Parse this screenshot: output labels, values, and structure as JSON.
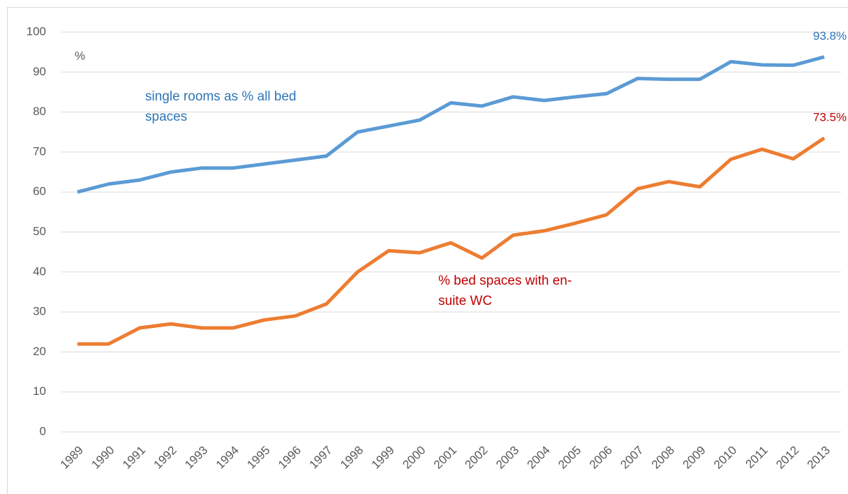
{
  "chart_data": {
    "type": "line",
    "y_label": "%",
    "categories": [
      "1989",
      "1990",
      "1991",
      "1992",
      "1993",
      "1994",
      "1995",
      "1996",
      "1997",
      "1998",
      "1999",
      "2000",
      "2001",
      "2002",
      "2003",
      "2004",
      "2005",
      "2006",
      "2007",
      "2008",
      "2009",
      "2010",
      "2011",
      "2012",
      "2013"
    ],
    "series": [
      {
        "name": "single rooms as % all bed spaces",
        "color": "#5b9bd5",
        "label_color": "#2e75b6",
        "values": [
          60,
          62,
          63,
          65,
          66,
          66,
          67,
          68,
          69,
          75,
          76.5,
          78,
          82.3,
          81.5,
          83.8,
          82.9,
          83.8,
          84.6,
          88.4,
          88.2,
          88.2,
          92.6,
          91.8,
          91.7,
          93.8
        ],
        "value_labels": [
          null,
          null,
          null,
          null,
          null,
          null,
          null,
          null,
          null,
          null,
          null,
          null,
          null,
          null,
          null,
          null,
          null,
          null,
          null,
          null,
          null,
          null,
          null,
          null,
          "93.8%"
        ]
      },
      {
        "name": "% bed spaces with en-suite WC",
        "color": "#ed7d31",
        "label_color": "#c00000",
        "values": [
          22,
          22,
          26,
          27,
          26,
          26,
          28,
          29,
          32,
          40,
          45.3,
          44.8,
          47.3,
          43.5,
          49.2,
          50.3,
          52.2,
          54.3,
          60.8,
          62.6,
          61.3,
          68.2,
          70.7,
          68.3,
          73.5
        ],
        "value_labels": [
          null,
          null,
          null,
          null,
          null,
          null,
          null,
          null,
          null,
          null,
          null,
          null,
          null,
          null,
          null,
          null,
          null,
          null,
          null,
          null,
          null,
          null,
          null,
          null,
          "73.5%"
        ]
      }
    ],
    "ylim": [
      0,
      100
    ],
    "yticks": [
      0,
      10,
      20,
      30,
      40,
      50,
      60,
      70,
      80,
      90,
      100
    ],
    "grid": true
  }
}
